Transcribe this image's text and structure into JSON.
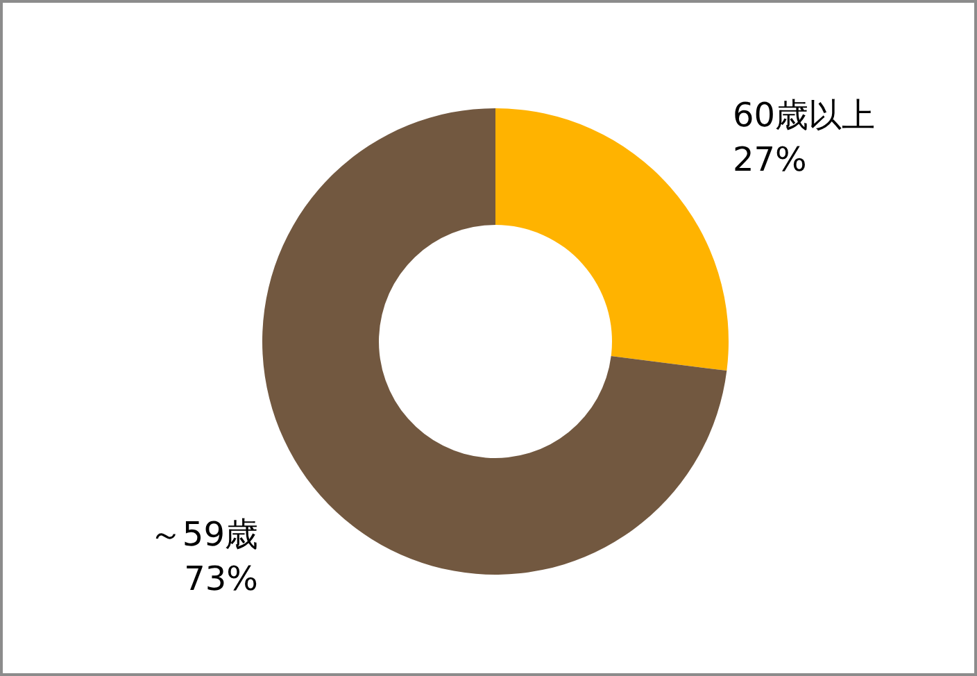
{
  "chart_data": {
    "type": "donut",
    "categories": [
      "60歳以上",
      "～59歳"
    ],
    "values": [
      27,
      73
    ],
    "value_labels": [
      "27%",
      "73%"
    ],
    "colors": [
      "#ffb300",
      "#725840"
    ],
    "legend": false
  }
}
